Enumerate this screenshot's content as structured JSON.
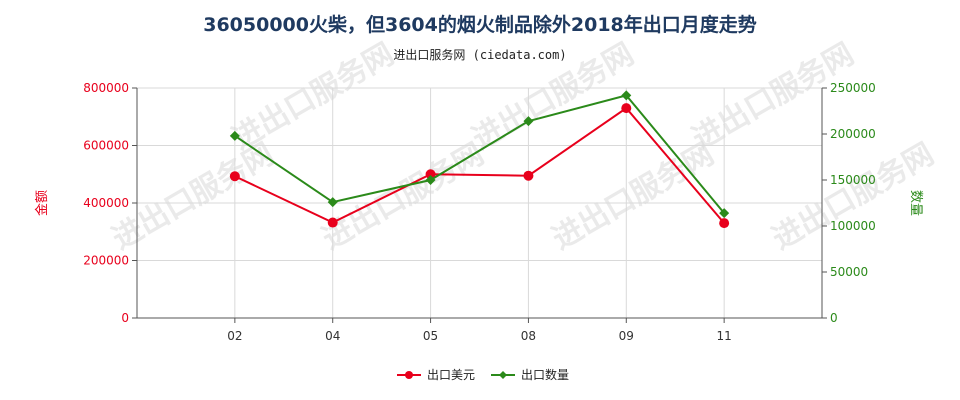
{
  "chart_data": {
    "type": "line",
    "title": "36050000火柴，但3604的烟火制品除外2018年出口月度走势",
    "subtitle": "进出口服务网 (ciedata.com)",
    "categories": [
      "02",
      "04",
      "05",
      "08",
      "09",
      "11"
    ],
    "y_left": {
      "label": "金额",
      "ticks": [
        "0",
        "200000",
        "400000",
        "600000",
        "800000"
      ],
      "ylim": [
        0,
        800000
      ],
      "color": "#e8001c"
    },
    "y_right": {
      "label": "数量",
      "ticks": [
        "0",
        "50000",
        "100000",
        "150000",
        "200000",
        "250000"
      ],
      "ylim": [
        0,
        250000
      ],
      "color": "#2b8a1a"
    },
    "series": [
      {
        "name": "出口美元",
        "axis": "left",
        "color": "#e8001c",
        "values": [
          493000,
          332000,
          500000,
          495000,
          730000,
          330000
        ]
      },
      {
        "name": "出口数量",
        "axis": "right",
        "color": "#2b8a1a",
        "values": [
          198000,
          126000,
          150000,
          214000,
          242000,
          114000
        ]
      }
    ],
    "grid": true,
    "legend_position": "bottom"
  },
  "watermark": "进出口服务网"
}
